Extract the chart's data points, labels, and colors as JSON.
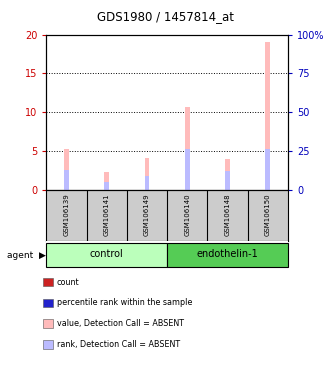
{
  "title": "GDS1980 / 1457814_at",
  "samples": [
    "GSM106139",
    "GSM106141",
    "GSM106149",
    "GSM106140",
    "GSM106148",
    "GSM106150"
  ],
  "groups": [
    "control",
    "control",
    "control",
    "endothelin-1",
    "endothelin-1",
    "endothelin-1"
  ],
  "group_colors_light": [
    "#bbffbb",
    "#55cc55"
  ],
  "pink_values": [
    5.2,
    2.3,
    4.1,
    10.6,
    3.9,
    19.0
  ],
  "blue_values": [
    2.5,
    1.0,
    1.7,
    5.2,
    2.4,
    5.2
  ],
  "ylim_left": [
    0,
    20
  ],
  "ylim_right": [
    0,
    100
  ],
  "yticks_left": [
    0,
    5,
    10,
    15,
    20
  ],
  "yticks_right": [
    0,
    25,
    50,
    75,
    100
  ],
  "ytick_labels_left": [
    "0",
    "5",
    "10",
    "15",
    "20"
  ],
  "ytick_labels_right": [
    "0",
    "25",
    "50",
    "75",
    "100%"
  ],
  "left_tick_color": "#cc0000",
  "right_tick_color": "#0000bb",
  "pink_bar_color": "#ffbbbb",
  "blue_bar_color": "#bbbbff",
  "bar_width": 0.12,
  "legend_items": [
    {
      "label": "count",
      "color": "#cc2222"
    },
    {
      "label": "percentile rank within the sample",
      "color": "#2222cc"
    },
    {
      "label": "value, Detection Call = ABSENT",
      "color": "#ffbbbb"
    },
    {
      "label": "rank, Detection Call = ABSENT",
      "color": "#bbbbff"
    }
  ],
  "background_color": "#ffffff",
  "sample_box_color": "#cccccc",
  "gridline_color": "#000000"
}
